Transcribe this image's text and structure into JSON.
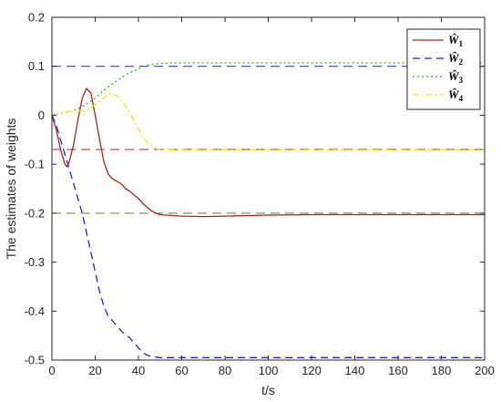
{
  "chart_data": {
    "type": "line",
    "title": "",
    "xlabel": "t/s",
    "ylabel": "The estimates of weights",
    "xlim": [
      0,
      200
    ],
    "ylim": [
      -0.5,
      0.2
    ],
    "xticks": [
      0,
      20,
      40,
      60,
      80,
      100,
      120,
      140,
      160,
      180,
      200
    ],
    "yticks": [
      -0.5,
      -0.4,
      -0.3,
      -0.2,
      -0.1,
      0,
      0.1,
      0.2
    ],
    "xtick_labels": [
      "0",
      "20",
      "40",
      "60",
      "80",
      "100",
      "120",
      "140",
      "160",
      "180",
      "200"
    ],
    "ytick_labels": [
      "-0.5",
      "-0.4",
      "-0.3",
      "-0.2",
      "-0.1",
      "0",
      "0.1",
      "0.2"
    ],
    "grid": false,
    "legend_position": "top-right",
    "series": [
      {
        "name": "Ŵ1",
        "color": "#a0281e",
        "style": "solid",
        "x": [
          0,
          2,
          4,
          6,
          7,
          8,
          10,
          12,
          14,
          16,
          18,
          20,
          22,
          24,
          26,
          28,
          30,
          32,
          34,
          36,
          38,
          40,
          42,
          44,
          46,
          48,
          50,
          60,
          70,
          80,
          90,
          100,
          120,
          140,
          160,
          180,
          200
        ],
        "y": [
          0,
          -0.03,
          -0.07,
          -0.1,
          -0.105,
          -0.095,
          -0.06,
          -0.01,
          0.035,
          0.055,
          0.045,
          0.0,
          -0.05,
          -0.095,
          -0.12,
          -0.13,
          -0.135,
          -0.14,
          -0.15,
          -0.155,
          -0.163,
          -0.17,
          -0.18,
          -0.188,
          -0.195,
          -0.2,
          -0.203,
          -0.206,
          -0.207,
          -0.206,
          -0.205,
          -0.204,
          -0.203,
          -0.203,
          -0.203,
          -0.203,
          -0.203
        ]
      },
      {
        "name": "Ŵ2",
        "color": "#1e28b4",
        "style": "dashed",
        "x": [
          0,
          2,
          4,
          6,
          8,
          10,
          12,
          14,
          16,
          18,
          20,
          22,
          24,
          26,
          28,
          30,
          32,
          34,
          36,
          38,
          40,
          42,
          44,
          46,
          48,
          50,
          60,
          80,
          100,
          120,
          140,
          160,
          180,
          200
        ],
        "y": [
          0,
          -0.02,
          -0.05,
          -0.08,
          -0.11,
          -0.14,
          -0.17,
          -0.2,
          -0.24,
          -0.28,
          -0.32,
          -0.36,
          -0.39,
          -0.41,
          -0.42,
          -0.43,
          -0.44,
          -0.448,
          -0.455,
          -0.465,
          -0.475,
          -0.485,
          -0.49,
          -0.493,
          -0.494,
          -0.495,
          -0.495,
          -0.495,
          -0.495,
          -0.495,
          -0.495,
          -0.495,
          -0.495,
          -0.495
        ]
      },
      {
        "name": "Ŵ3",
        "color": "#2ab52a",
        "style": "dotted",
        "x": [
          0,
          5,
          10,
          15,
          20,
          25,
          30,
          35,
          40,
          45,
          50,
          60,
          80,
          100,
          120,
          140,
          160,
          180,
          200
        ],
        "y": [
          0,
          0.005,
          0.01,
          0.02,
          0.035,
          0.055,
          0.07,
          0.085,
          0.095,
          0.103,
          0.106,
          0.107,
          0.107,
          0.107,
          0.107,
          0.107,
          0.107,
          0.107,
          0.107
        ]
      },
      {
        "name": "Ŵ4",
        "color": "#e8e81e",
        "style": "dashdot",
        "x": [
          0,
          5,
          10,
          15,
          18,
          21,
          24,
          27,
          30,
          33,
          36,
          39,
          42,
          45,
          48,
          50,
          60,
          80,
          100,
          120,
          140,
          160,
          180,
          200
        ],
        "y": [
          0,
          0.005,
          0.01,
          0.008,
          0.015,
          0.025,
          0.035,
          0.045,
          0.04,
          0.025,
          0.005,
          -0.02,
          -0.045,
          -0.06,
          -0.068,
          -0.07,
          -0.071,
          -0.071,
          -0.071,
          -0.071,
          -0.071,
          -0.071,
          -0.071,
          -0.071
        ]
      }
    ],
    "reference_lines": [
      {
        "y": 0.1,
        "color": "#1e28b4",
        "style": "longdash"
      },
      {
        "y": -0.07,
        "color": "#a0281e",
        "style": "longdash"
      },
      {
        "y": -0.2,
        "color": "#6b7d1e",
        "style": "longdash"
      },
      {
        "y": -0.5,
        "color": "#1e28b4",
        "style": "longdash"
      }
    ]
  }
}
